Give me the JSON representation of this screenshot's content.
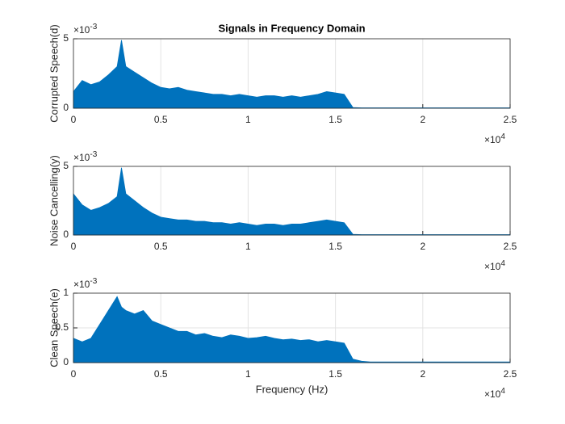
{
  "chart_data": [
    {
      "type": "area",
      "title": "Signals in Frequency Domain",
      "ylabel": "Corrupted Speech(d)",
      "color": "#0072bd",
      "grid": true,
      "x": [
        0,
        0.05,
        0.1,
        0.15,
        0.2,
        0.25,
        0.275,
        0.3,
        0.35,
        0.4,
        0.45,
        0.5,
        0.55,
        0.6,
        0.65,
        0.7,
        0.75,
        0.8,
        0.85,
        0.9,
        0.95,
        1.0,
        1.05,
        1.1,
        1.15,
        1.2,
        1.25,
        1.3,
        1.35,
        1.4,
        1.45,
        1.5,
        1.55,
        1.6,
        1.65,
        1.7,
        1.75,
        1.8,
        1.85,
        1.9,
        1.95,
        2.0,
        2.05,
        2.1,
        2.15,
        2.2,
        2.25,
        2.3,
        2.35,
        2.4,
        2.45,
        2.5
      ],
      "values": [
        1.2,
        2.0,
        1.7,
        1.9,
        2.4,
        3.0,
        4.9,
        3.0,
        2.6,
        2.2,
        1.8,
        1.5,
        1.4,
        1.5,
        1.3,
        1.2,
        1.1,
        1.0,
        1.0,
        0.9,
        1.0,
        0.9,
        0.8,
        0.9,
        0.9,
        0.8,
        0.9,
        0.8,
        0.9,
        1.0,
        1.2,
        1.1,
        1.0,
        0.05,
        0.03,
        0.03,
        0.03,
        0.03,
        0.03,
        0.03,
        0.03,
        0.03,
        0.03,
        0.03,
        0.03,
        0.03,
        0.03,
        0.03,
        0.03,
        0.03,
        0.03,
        0.03
      ],
      "xlim": [
        0,
        2.5
      ],
      "xticks": [
        0,
        0.5,
        1,
        1.5,
        2,
        2.5
      ],
      "ylim": [
        0,
        5
      ],
      "yticks": [
        0,
        5
      ],
      "x_multiplier": {
        "base": "×10",
        "exponent": "4"
      },
      "y_multiplier": {
        "base": "×10",
        "exponent": "-3"
      }
    },
    {
      "type": "area",
      "ylabel": "Noise Cancelling(y)",
      "color": "#0072bd",
      "grid": true,
      "x": [
        0,
        0.05,
        0.1,
        0.15,
        0.2,
        0.25,
        0.275,
        0.3,
        0.35,
        0.4,
        0.45,
        0.5,
        0.55,
        0.6,
        0.65,
        0.7,
        0.75,
        0.8,
        0.85,
        0.9,
        0.95,
        1.0,
        1.05,
        1.1,
        1.15,
        1.2,
        1.25,
        1.3,
        1.35,
        1.4,
        1.45,
        1.5,
        1.55,
        1.6,
        1.65,
        1.7,
        1.75,
        1.8,
        1.85,
        1.9,
        1.95,
        2.0,
        2.05,
        2.1,
        2.15,
        2.2,
        2.25,
        2.3,
        2.35,
        2.4,
        2.45,
        2.5
      ],
      "values": [
        3.0,
        2.2,
        1.8,
        2.0,
        2.3,
        2.8,
        4.9,
        3.0,
        2.5,
        2.0,
        1.6,
        1.3,
        1.2,
        1.1,
        1.1,
        1.0,
        1.0,
        0.9,
        0.9,
        0.8,
        0.9,
        0.8,
        0.7,
        0.8,
        0.8,
        0.7,
        0.8,
        0.8,
        0.9,
        1.0,
        1.1,
        1.0,
        0.9,
        0.05,
        0.03,
        0.03,
        0.03,
        0.03,
        0.03,
        0.03,
        0.03,
        0.03,
        0.03,
        0.03,
        0.03,
        0.03,
        0.03,
        0.03,
        0.03,
        0.03,
        0.03,
        0.03
      ],
      "xlim": [
        0,
        2.5
      ],
      "xticks": [
        0,
        0.5,
        1,
        1.5,
        2,
        2.5
      ],
      "ylim": [
        0,
        5
      ],
      "yticks": [
        0,
        5
      ],
      "x_multiplier": {
        "base": "×10",
        "exponent": "4"
      },
      "y_multiplier": {
        "base": "×10",
        "exponent": "-3"
      }
    },
    {
      "type": "area",
      "ylabel": "Clean Speech(e)",
      "xlabel": "Frequency (Hz)",
      "color": "#0072bd",
      "grid": true,
      "x": [
        0,
        0.05,
        0.1,
        0.15,
        0.2,
        0.25,
        0.275,
        0.3,
        0.35,
        0.4,
        0.45,
        0.5,
        0.55,
        0.6,
        0.65,
        0.7,
        0.75,
        0.8,
        0.85,
        0.9,
        0.95,
        1.0,
        1.05,
        1.1,
        1.15,
        1.2,
        1.25,
        1.3,
        1.35,
        1.4,
        1.45,
        1.5,
        1.55,
        1.6,
        1.65,
        1.7,
        1.75,
        1.8,
        1.85,
        1.9,
        1.95,
        2.0,
        2.05,
        2.1,
        2.15,
        2.2,
        2.25,
        2.3,
        2.35,
        2.4,
        2.45,
        2.5
      ],
      "values": [
        0.35,
        0.3,
        0.35,
        0.55,
        0.75,
        0.95,
        0.8,
        0.75,
        0.7,
        0.75,
        0.6,
        0.55,
        0.5,
        0.45,
        0.45,
        0.4,
        0.42,
        0.38,
        0.36,
        0.4,
        0.38,
        0.35,
        0.36,
        0.38,
        0.35,
        0.33,
        0.34,
        0.32,
        0.33,
        0.3,
        0.32,
        0.3,
        0.28,
        0.05,
        0.02,
        0.01,
        0.01,
        0.01,
        0.01,
        0.01,
        0.01,
        0.01,
        0.01,
        0.01,
        0.01,
        0.01,
        0.01,
        0.01,
        0.01,
        0.01,
        0.01,
        0.01
      ],
      "xlim": [
        0,
        2.5
      ],
      "xticks": [
        0,
        0.5,
        1,
        1.5,
        2,
        2.5
      ],
      "ylim": [
        0,
        1
      ],
      "yticks": [
        0,
        0.5,
        1
      ],
      "x_multiplier": {
        "base": "×10",
        "exponent": "4"
      },
      "y_multiplier": {
        "base": "×10",
        "exponent": "-3"
      }
    }
  ]
}
